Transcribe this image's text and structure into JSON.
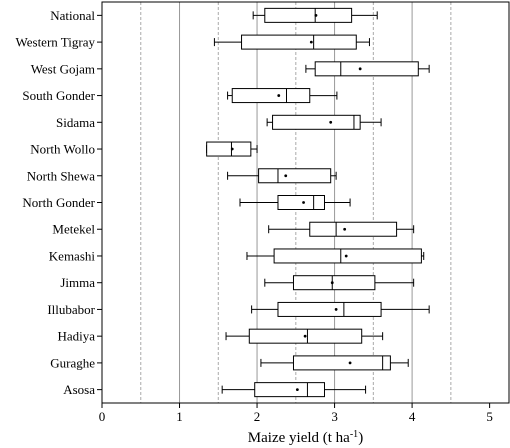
{
  "chart_data": {
    "type": "box",
    "xlabel": "Maize yield (t ha",
    "xlabel_superscript": "-1",
    "xlabel_suffix": ")",
    "xlim": [
      0,
      5.25
    ],
    "xticks": [
      0,
      1,
      2,
      3,
      4,
      5
    ],
    "vertical_gridlines": [
      0.5,
      1,
      1.5,
      2,
      2.5,
      3,
      3.5,
      4,
      4.5
    ],
    "categories": [
      "National",
      "Western Tigray",
      "West Gojam",
      "South Gonder",
      "Sidama",
      "North Wollo",
      "North Shewa",
      "North Gonder",
      "Metekel",
      "Kemashi",
      "Jimma",
      "Illubabor",
      "Hadiya",
      "Guraghe",
      "Asosa"
    ],
    "boxes": [
      {
        "min": 1.95,
        "q1": 2.1,
        "median": 2.75,
        "q3": 3.22,
        "max": 3.55,
        "mean": 2.76
      },
      {
        "min": 1.45,
        "q1": 1.8,
        "median": 2.73,
        "q3": 3.28,
        "max": 3.45,
        "mean": 2.7
      },
      {
        "min": 2.63,
        "q1": 2.75,
        "median": 3.08,
        "q3": 4.08,
        "max": 4.22,
        "mean": 3.33
      },
      {
        "min": 1.62,
        "q1": 1.68,
        "median": 2.38,
        "q3": 2.68,
        "max": 3.03,
        "mean": 2.28
      },
      {
        "min": 2.13,
        "q1": 2.2,
        "median": 3.25,
        "q3": 3.33,
        "max": 3.6,
        "mean": 2.95
      },
      {
        "min": 1.35,
        "q1": 1.35,
        "median": 1.67,
        "q3": 1.92,
        "max": 2.0,
        "mean": 1.68
      },
      {
        "min": 1.62,
        "q1": 2.02,
        "median": 2.27,
        "q3": 2.95,
        "max": 3.02,
        "mean": 2.37
      },
      {
        "min": 1.78,
        "q1": 2.27,
        "median": 2.73,
        "q3": 2.87,
        "max": 3.2,
        "mean": 2.6
      },
      {
        "min": 2.15,
        "q1": 2.68,
        "median": 3.02,
        "q3": 3.8,
        "max": 4.02,
        "mean": 3.13
      },
      {
        "min": 1.87,
        "q1": 2.22,
        "median": 3.08,
        "q3": 4.12,
        "max": 4.15,
        "mean": 3.15
      },
      {
        "min": 2.1,
        "q1": 2.47,
        "median": 2.97,
        "q3": 3.52,
        "max": 4.02,
        "mean": 2.97
      },
      {
        "min": 1.93,
        "q1": 2.27,
        "median": 3.12,
        "q3": 3.6,
        "max": 4.22,
        "mean": 3.02
      },
      {
        "min": 1.6,
        "q1": 1.9,
        "median": 2.65,
        "q3": 3.35,
        "max": 3.62,
        "mean": 2.62
      },
      {
        "min": 2.05,
        "q1": 2.47,
        "median": 3.62,
        "q3": 3.72,
        "max": 3.95,
        "mean": 3.2
      },
      {
        "min": 1.55,
        "q1": 1.97,
        "median": 2.65,
        "q3": 2.87,
        "max": 3.4,
        "mean": 2.52
      }
    ]
  }
}
